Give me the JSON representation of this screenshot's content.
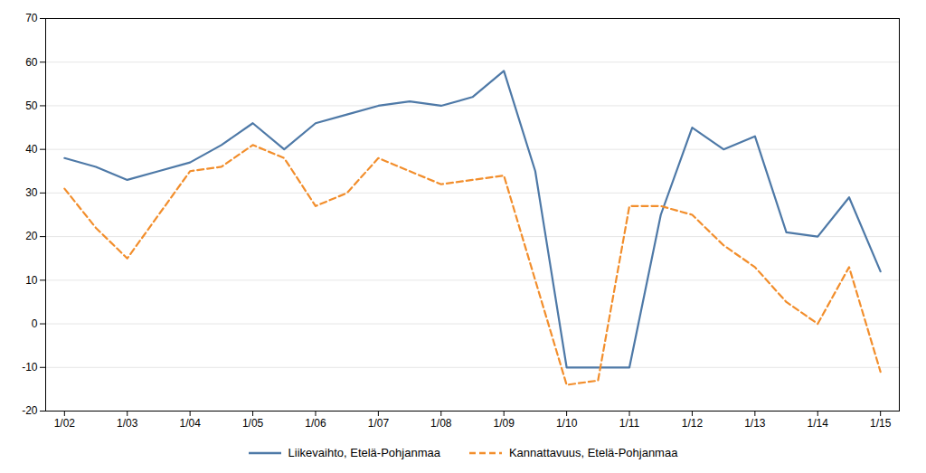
{
  "chart_data": {
    "type": "line",
    "x": [
      0,
      0.5,
      1,
      1.5,
      2,
      2.5,
      3,
      3.5,
      4,
      4.5,
      5,
      5.5,
      6,
      6.5,
      7,
      7.5,
      8,
      8.5,
      9,
      9.5,
      10,
      10.5,
      11,
      11.5,
      12,
      12.5,
      13
    ],
    "series": [
      {
        "name": "Liikevaihto, Etelä-Pohjanmaa",
        "line_style": "solid",
        "values": [
          38,
          36,
          33,
          35,
          37,
          41,
          46,
          40,
          46,
          48,
          50,
          51,
          50,
          52,
          58,
          35,
          -10,
          -10,
          -10,
          25,
          45,
          40,
          43,
          21,
          20,
          29,
          12
        ]
      },
      {
        "name": "Kannattavuus, Etelä-Pohjanmaa",
        "line_style": "dashed",
        "values": [
          31,
          22,
          15,
          25,
          35,
          36,
          41,
          38,
          27,
          30,
          38,
          35,
          32,
          33,
          34,
          10,
          -14,
          -13,
          27,
          27,
          25,
          18,
          13,
          5,
          0,
          13,
          -11
        ]
      }
    ],
    "xlim": [
      -0.3,
      13.3
    ],
    "xticks": [
      {
        "value": 0,
        "label": "1/02"
      },
      {
        "value": 1,
        "label": "1/03"
      },
      {
        "value": 2,
        "label": "1/04"
      },
      {
        "value": 3,
        "label": "1/05"
      },
      {
        "value": 4,
        "label": "1/06"
      },
      {
        "value": 5,
        "label": "1/07"
      },
      {
        "value": 6,
        "label": "1/08"
      },
      {
        "value": 7,
        "label": "1/09"
      },
      {
        "value": 8,
        "label": "1/10"
      },
      {
        "value": 9,
        "label": "1/11"
      },
      {
        "value": 10,
        "label": "1/12"
      },
      {
        "value": 11,
        "label": "1/13"
      },
      {
        "value": 12,
        "label": "1/14"
      },
      {
        "value": 13,
        "label": "1/15"
      }
    ],
    "ylim": [
      -20,
      70
    ],
    "yticks": [
      -20,
      -10,
      0,
      10,
      20,
      30,
      40,
      50,
      60,
      70
    ],
    "grid": true,
    "legend": "bottom"
  }
}
